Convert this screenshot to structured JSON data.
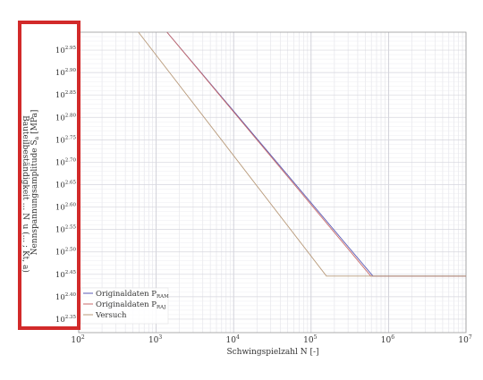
{
  "chart_data": {
    "type": "line",
    "xlabel": "Schwingspielzahl N [-]",
    "ylabel_main": "Nennspannungsamplitude S",
    "ylabel_sub": "a",
    "ylabel_unit": "[MPa]",
    "ylabel_mirrored": "Bauteilbeständigkeit ... N_u (... ; Kt, a)",
    "x_scale": "log",
    "y_scale": "log",
    "xlim": [
      100,
      10000000
    ],
    "ylim_exponent": [
      2.32,
      2.99
    ],
    "grid": true,
    "legend_position": "bottom-left",
    "x_ticks": [
      {
        "base": "10",
        "exp": "2",
        "value": 100
      },
      {
        "base": "10",
        "exp": "3",
        "value": 1000
      },
      {
        "base": "10",
        "exp": "4",
        "value": 10000
      },
      {
        "base": "10",
        "exp": "5",
        "value": 100000
      },
      {
        "base": "10",
        "exp": "6",
        "value": 1000000
      },
      {
        "base": "10",
        "exp": "7",
        "value": 10000000
      }
    ],
    "y_ticks": [
      {
        "base": "10",
        "exp": "2.95",
        "value": 2.95
      },
      {
        "base": "10",
        "exp": "2.90",
        "value": 2.9
      },
      {
        "base": "10",
        "exp": "2.85",
        "value": 2.85
      },
      {
        "base": "10",
        "exp": "2.80",
        "value": 2.8
      },
      {
        "base": "10",
        "exp": "2.75",
        "value": 2.75
      },
      {
        "base": "10",
        "exp": "2.70",
        "value": 2.7
      },
      {
        "base": "10",
        "exp": "2.65",
        "value": 2.65
      },
      {
        "base": "10",
        "exp": "2.60",
        "value": 2.6
      },
      {
        "base": "10",
        "exp": "2.55",
        "value": 2.55
      },
      {
        "base": "10",
        "exp": "2.50",
        "value": 2.5
      },
      {
        "base": "10",
        "exp": "2.45",
        "value": 2.45
      },
      {
        "base": "10",
        "exp": "2.40",
        "value": 2.4
      },
      {
        "base": "10",
        "exp": "2.35",
        "value": 2.35
      }
    ],
    "series": [
      {
        "name_main": "Originaldaten P",
        "name_sub": "RAM",
        "color": "#5a5ab4",
        "points": [
          [
            1380,
            2.99
          ],
          [
            630000,
            2.446
          ],
          [
            10000000,
            2.446
          ]
        ]
      },
      {
        "name_main": "Originaldaten P",
        "name_sub": "RAJ",
        "color": "#c86a6a",
        "points": [
          [
            1380,
            2.99
          ],
          [
            590000,
            2.446
          ],
          [
            10000000,
            2.446
          ]
        ]
      },
      {
        "name_main": "Versuch",
        "name_sub": "",
        "color": "#b89a7a",
        "points": [
          [
            590,
            2.99
          ],
          [
            158000,
            2.446
          ],
          [
            10000000,
            2.446
          ]
        ]
      }
    ]
  },
  "annotation": {
    "highlight_color": "#d22a2a"
  }
}
